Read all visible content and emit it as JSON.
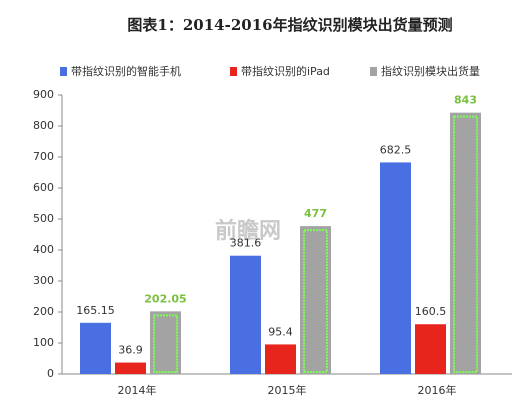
{
  "chart_data": {
    "type": "bar",
    "title": "图表1：2014-2016年指纹识别模块出货量预测",
    "watermark": "前瞻网",
    "categories": [
      "2014年",
      "2015年",
      "2016年"
    ],
    "series": [
      {
        "name": "带指纹识别的智能手机",
        "color": "#4a6fe3",
        "values": [
          165.15,
          381.6,
          682.5
        ]
      },
      {
        "name": "带指纹识别的iPad",
        "color": "#e8251c",
        "values": [
          36.9,
          95.4,
          160.5
        ]
      },
      {
        "name": "指纹识别模块出货量",
        "color": "#a3a3a3",
        "values": [
          202.05,
          477,
          843
        ]
      }
    ],
    "ylim": [
      0,
      900
    ],
    "yticks": [
      0,
      100,
      200,
      300,
      400,
      500,
      600,
      700,
      800,
      900
    ],
    "legend": "top"
  }
}
